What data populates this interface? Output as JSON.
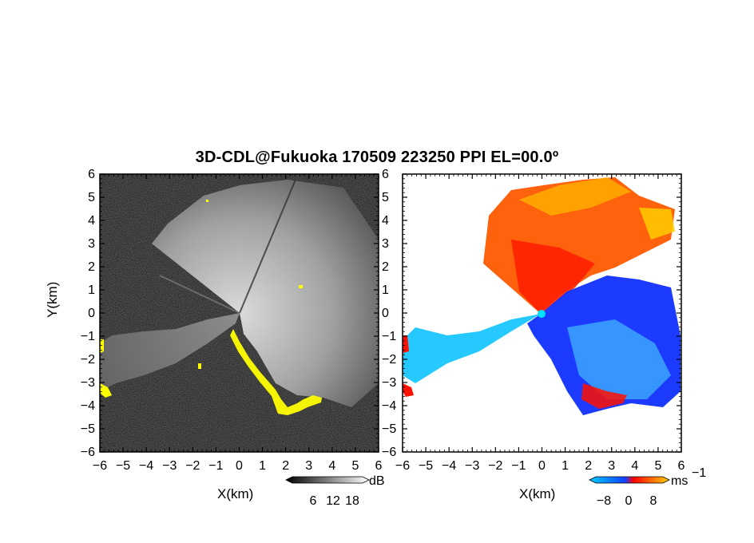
{
  "title": "3D-CDL@Fukuoka 170509 223250 PPI EL=00.0º",
  "chart_data": [
    {
      "type": "heatmap",
      "name": "reflectivity-panel",
      "xlabel": "X(km)",
      "ylabel": "Y(km)",
      "xlim": [
        -6,
        6
      ],
      "ylim": [
        -6,
        6
      ],
      "xticks": [
        "−6",
        "−5",
        "−4",
        "−3",
        "−2",
        "−1",
        "0",
        "1",
        "2",
        "3",
        "4",
        "5",
        "6"
      ],
      "yticks": [
        "6",
        "5",
        "4",
        "3",
        "2",
        "1",
        "0",
        "−1",
        "−2",
        "−3",
        "−4",
        "−5",
        "−6"
      ],
      "colorbar": {
        "unit": "dB",
        "ticks": [
          "6",
          "12",
          "18"
        ],
        "range": [
          0,
          22
        ],
        "colors": [
          "#000000",
          "#ffffff"
        ],
        "flag_color": "#ffff00"
      }
    },
    {
      "type": "heatmap",
      "name": "doppler-velocity-panel",
      "xlabel": "X(km)",
      "ylabel": "",
      "xlim": [
        -6,
        6
      ],
      "ylim": [
        -6,
        6
      ],
      "xticks": [
        "−6",
        "−5",
        "−4",
        "−3",
        "−2",
        "−1",
        "0",
        "1",
        "2",
        "3",
        "4",
        "5",
        "6"
      ],
      "yticks": [
        "6",
        "5",
        "4",
        "3",
        "2",
        "1",
        "0",
        "−1",
        "−2",
        "−3",
        "−4",
        "−5",
        "−6"
      ],
      "colorbar": {
        "unit": "ms",
        "unit_exponent": "−1",
        "ticks": [
          "−8",
          "0",
          "8"
        ],
        "range": [
          -12,
          12
        ],
        "colors": [
          "#00ccff",
          "#1040ff",
          "#ff0000",
          "#ffd000"
        ]
      }
    }
  ],
  "colors": {
    "yellow_flag": "#ffff00",
    "vel_cyan": "#00ccff",
    "vel_blue": "#1030ff",
    "vel_red": "#ff1000",
    "vel_orange": "#ff7000",
    "vel_yellow": "#ffcc00"
  }
}
